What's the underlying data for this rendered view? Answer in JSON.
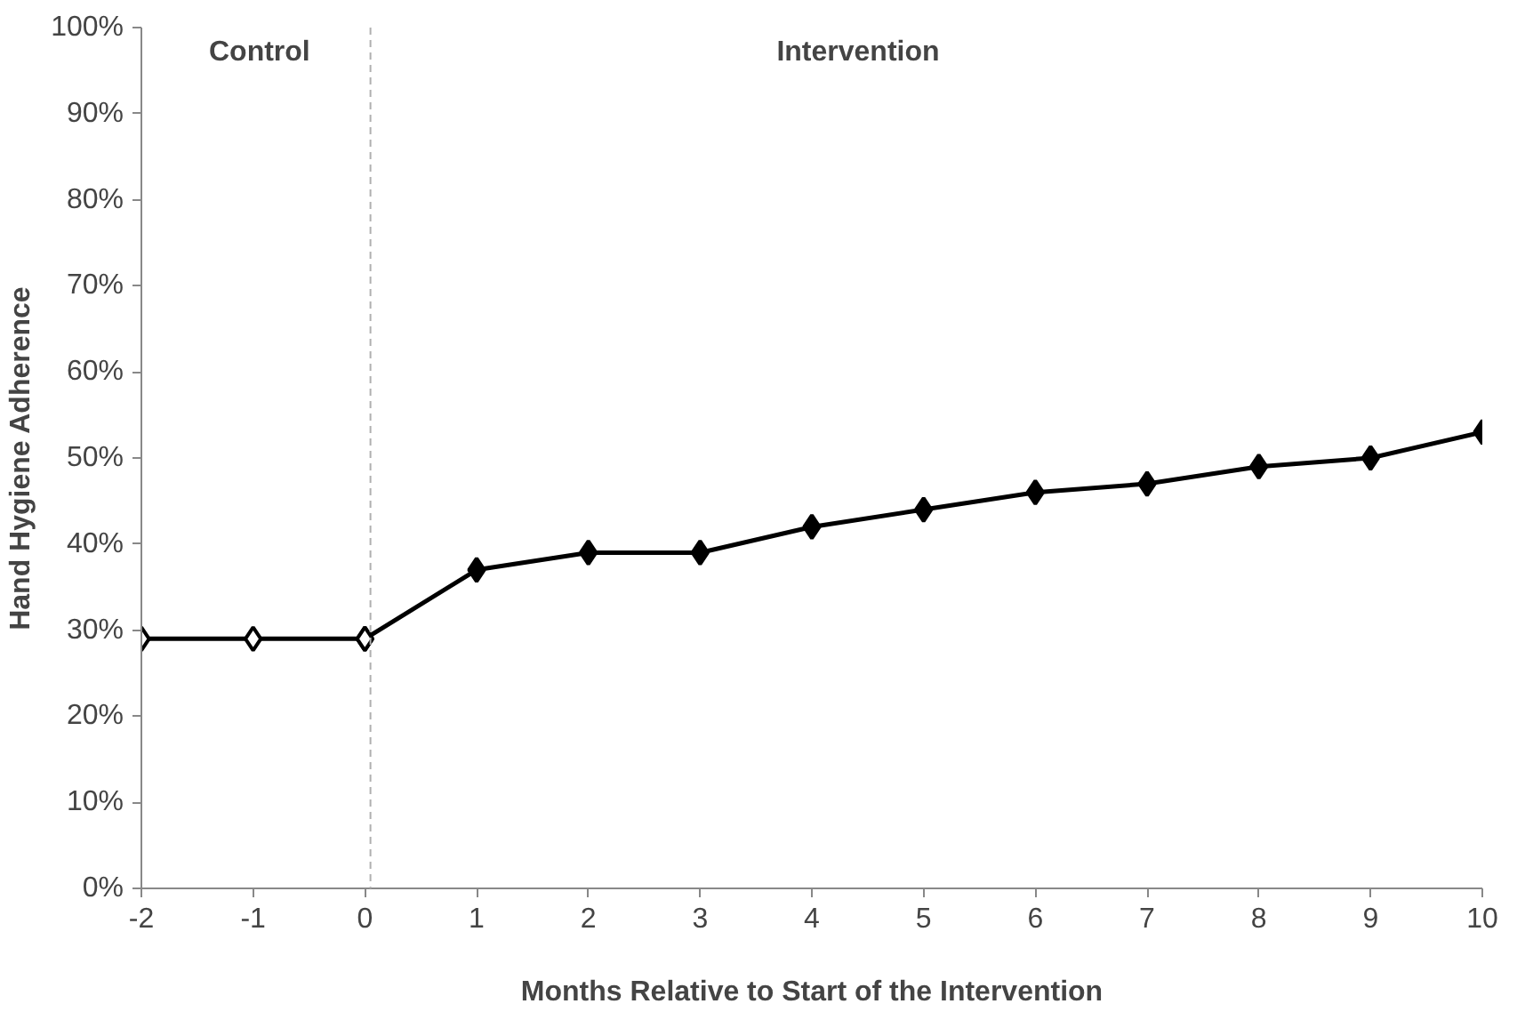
{
  "chart_data": {
    "type": "line",
    "xlabel": "Months Relative to Start of the Intervention",
    "ylabel": "Hand Hygiene Adherence",
    "series": [
      {
        "x": [
          0,
          1,
          2,
          3,
          4,
          5,
          6,
          7,
          8,
          9,
          10
        ],
        "values": [
          29,
          37,
          39,
          39,
          42,
          44,
          46,
          47,
          49,
          50,
          53
        ],
        "color": "#000000"
      },
      {
        "x": [
          -2,
          -1,
          0
        ],
        "values": [
          29,
          29,
          29
        ],
        "color": "#000000"
      }
    ],
    "marker": "diamond",
    "line_style": "solid",
    "grid": false,
    "xlim": [
      -2,
      10
    ],
    "xticks": [
      -2,
      -1,
      0,
      1,
      2,
      3,
      4,
      5,
      6,
      7,
      8,
      9,
      10
    ],
    "ylim": [
      0,
      100
    ],
    "yticks": [
      {
        "value": 0,
        "label": "0%"
      },
      {
        "value": 10,
        "label": "10%"
      },
      {
        "value": 20,
        "label": "20%"
      },
      {
        "value": 30,
        "label": "30%"
      },
      {
        "value": 40,
        "label": "40%"
      },
      {
        "value": 50,
        "label": "50%"
      },
      {
        "value": 60,
        "label": "60%"
      },
      {
        "value": 70,
        "label": "70%"
      },
      {
        "value": 80,
        "label": "80%"
      },
      {
        "value": 90,
        "label": "90%"
      },
      {
        "value": 100,
        "label": "100%"
      }
    ],
    "ref_lines": [
      {
        "axis": "x",
        "value": 0.05,
        "color": "#b0b0b0",
        "line_style": "dashed"
      }
    ],
    "annotations": [
      "Control",
      "Intervention"
    ]
  }
}
